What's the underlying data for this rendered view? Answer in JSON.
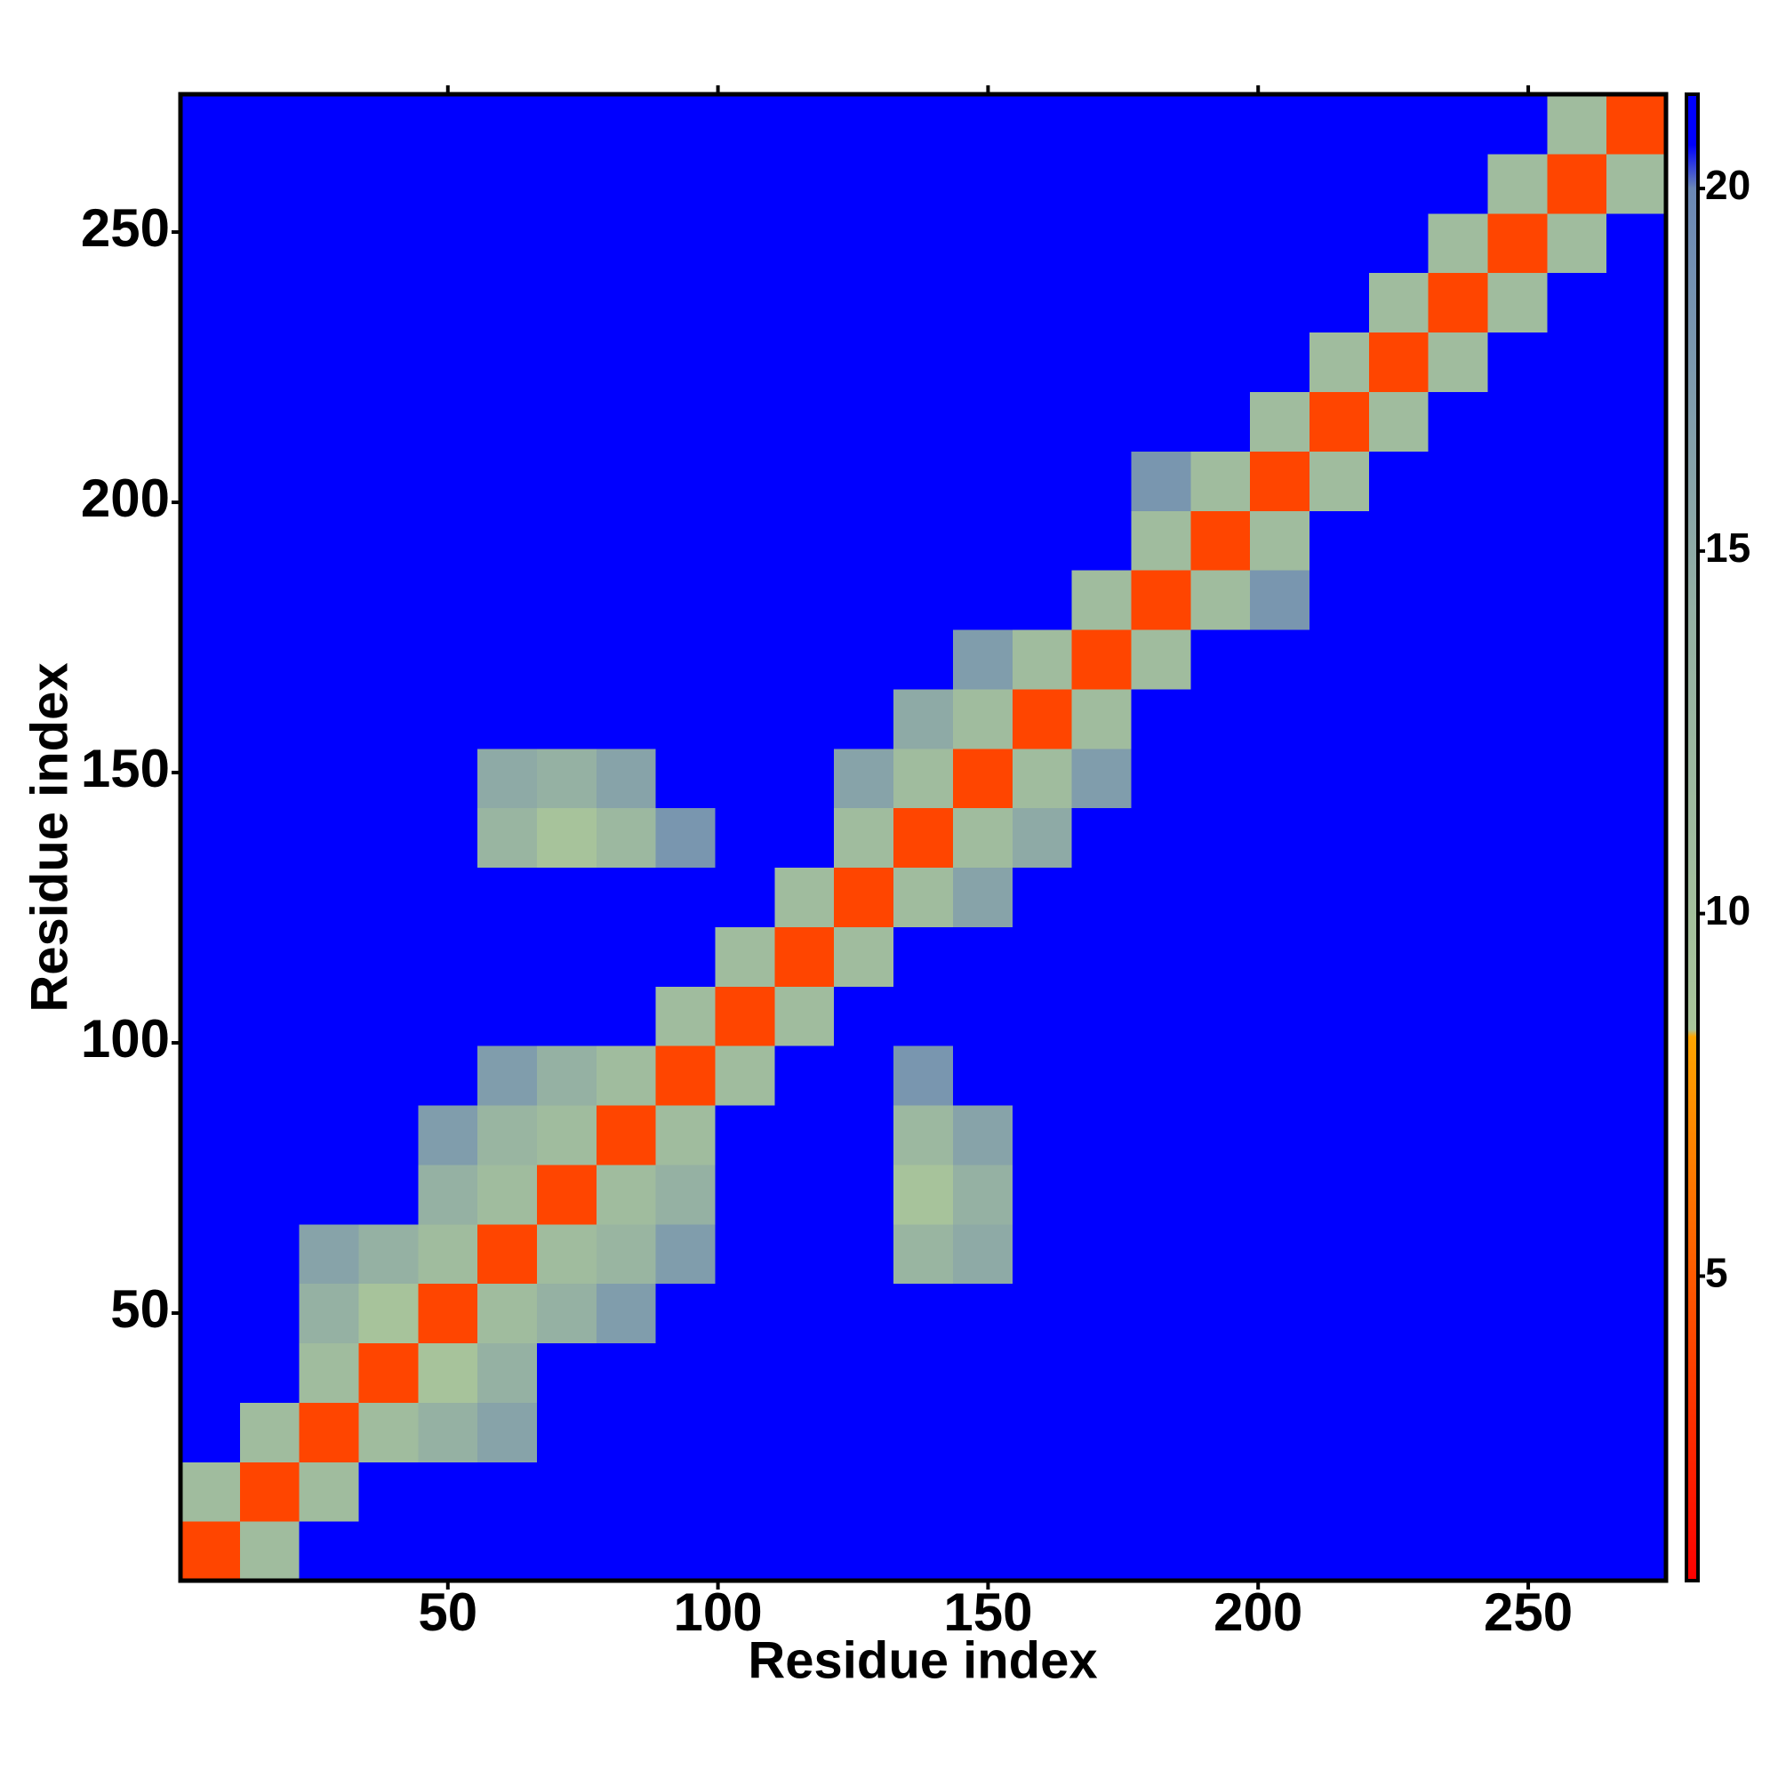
{
  "chart_data": {
    "type": "heatmap",
    "x_label": "Residue index",
    "y_label": "Residue index",
    "xlim": [
      0.5,
      275.5
    ],
    "ylim": [
      0.5,
      275.5
    ],
    "xticks": [
      50,
      100,
      150,
      200,
      250
    ],
    "yticks": [
      50,
      100,
      150,
      200,
      250
    ],
    "xbins": [
      0.5,
      11.5,
      22.5,
      33.5,
      44.5,
      55.5,
      66.5,
      77.5,
      88.5,
      99.5,
      110.5,
      121.5,
      132.5,
      143.5,
      154.5,
      165.5,
      176.5,
      187.5,
      198.5,
      209.5,
      220.5,
      231.5,
      242.5,
      253.5,
      264.5,
      275.5
    ],
    "ybins": [
      0.5,
      11.5,
      22.5,
      33.5,
      44.5,
      55.5,
      66.5,
      77.5,
      88.5,
      99.5,
      110.5,
      121.5,
      132.5,
      143.5,
      154.5,
      165.5,
      176.5,
      187.5,
      198.5,
      209.5,
      220.5,
      231.5,
      242.5,
      253.5,
      264.5,
      275.5
    ],
    "zlim": [
      0.8,
      21.3
    ],
    "zticks": [
      5,
      10,
      15,
      20
    ],
    "colorscale": [
      [
        0.8,
        "#ff0000"
      ],
      [
        5,
        "#ff5a00"
      ],
      [
        8.3,
        "#ffa500"
      ],
      [
        8.4,
        "#a9c59a"
      ],
      [
        14,
        "#95b1a3"
      ],
      [
        20,
        "#6b88b5"
      ],
      [
        20.6,
        "#0000ff"
      ],
      [
        21.3,
        "#0000ff"
      ]
    ],
    "z": [
      [
        4,
        11,
        21,
        21,
        21,
        21,
        21,
        21,
        21,
        21,
        21,
        21,
        21,
        21,
        21,
        21,
        21,
        21,
        21,
        21,
        21,
        21,
        21,
        21,
        21
      ],
      [
        11,
        4,
        11,
        21,
        21,
        21,
        21,
        21,
        21,
        21,
        21,
        21,
        21,
        21,
        21,
        21,
        21,
        21,
        21,
        21,
        21,
        21,
        21,
        21,
        21
      ],
      [
        21,
        11,
        4,
        11,
        14,
        16,
        21,
        21,
        21,
        21,
        21,
        21,
        21,
        21,
        21,
        21,
        21,
        21,
        21,
        21,
        21,
        21,
        21,
        21,
        21
      ],
      [
        21,
        21,
        11,
        4,
        9,
        14,
        21,
        21,
        21,
        21,
        21,
        21,
        21,
        21,
        21,
        21,
        21,
        21,
        21,
        21,
        21,
        21,
        21,
        21,
        21
      ],
      [
        21,
        21,
        14,
        9,
        4,
        11,
        14,
        17,
        21,
        21,
        21,
        21,
        21,
        21,
        21,
        21,
        21,
        21,
        21,
        21,
        21,
        21,
        21,
        21,
        21
      ],
      [
        21,
        21,
        16,
        14,
        11,
        4,
        11,
        13,
        17,
        21,
        21,
        21,
        13,
        15,
        21,
        21,
        21,
        21,
        21,
        21,
        21,
        21,
        21,
        21,
        21
      ],
      [
        21,
        21,
        21,
        21,
        14,
        11,
        4,
        11,
        14,
        21,
        21,
        21,
        9,
        14,
        21,
        21,
        21,
        21,
        21,
        21,
        21,
        21,
        21,
        21,
        21
      ],
      [
        21,
        21,
        21,
        21,
        17,
        13,
        11,
        4,
        11,
        21,
        21,
        21,
        12,
        16,
        21,
        21,
        21,
        21,
        21,
        21,
        21,
        21,
        21,
        21,
        21
      ],
      [
        21,
        21,
        21,
        21,
        21,
        17,
        14,
        11,
        4,
        11,
        21,
        21,
        18,
        21,
        21,
        21,
        21,
        21,
        21,
        21,
        21,
        21,
        21,
        21,
        21
      ],
      [
        21,
        21,
        21,
        21,
        21,
        21,
        21,
        21,
        11,
        4,
        11,
        21,
        21,
        21,
        21,
        21,
        21,
        21,
        21,
        21,
        21,
        21,
        21,
        21,
        21
      ],
      [
        21,
        21,
        21,
        21,
        21,
        21,
        21,
        21,
        21,
        11,
        4,
        11,
        21,
        21,
        21,
        21,
        21,
        21,
        21,
        21,
        21,
        21,
        21,
        21,
        21
      ],
      [
        21,
        21,
        21,
        21,
        21,
        21,
        21,
        21,
        21,
        21,
        11,
        4,
        11,
        16,
        21,
        21,
        21,
        21,
        21,
        21,
        21,
        21,
        21,
        21,
        21
      ],
      [
        21,
        21,
        21,
        21,
        21,
        13,
        9,
        12,
        18,
        21,
        21,
        11,
        4,
        11,
        15,
        21,
        21,
        21,
        21,
        21,
        21,
        21,
        21,
        21,
        21
      ],
      [
        21,
        21,
        21,
        21,
        21,
        15,
        14,
        16,
        21,
        21,
        21,
        16,
        11,
        4,
        11,
        17,
        21,
        21,
        21,
        21,
        21,
        21,
        21,
        21,
        21
      ],
      [
        21,
        21,
        21,
        21,
        21,
        21,
        21,
        21,
        21,
        21,
        21,
        21,
        15,
        11,
        4,
        11,
        21,
        21,
        21,
        21,
        21,
        21,
        21,
        21,
        21
      ],
      [
        21,
        21,
        21,
        21,
        21,
        21,
        21,
        21,
        21,
        21,
        21,
        21,
        21,
        17,
        11,
        4,
        11,
        21,
        21,
        21,
        21,
        21,
        21,
        21,
        21
      ],
      [
        21,
        21,
        21,
        21,
        21,
        21,
        21,
        21,
        21,
        21,
        21,
        21,
        21,
        21,
        21,
        11,
        4,
        11,
        18,
        21,
        21,
        21,
        21,
        21,
        21
      ],
      [
        21,
        21,
        21,
        21,
        21,
        21,
        21,
        21,
        21,
        21,
        21,
        21,
        21,
        21,
        21,
        21,
        11,
        4,
        11,
        21,
        21,
        21,
        21,
        21,
        21
      ],
      [
        21,
        21,
        21,
        21,
        21,
        21,
        21,
        21,
        21,
        21,
        21,
        21,
        21,
        21,
        21,
        21,
        18,
        11,
        4,
        11,
        21,
        21,
        21,
        21,
        21
      ],
      [
        21,
        21,
        21,
        21,
        21,
        21,
        21,
        21,
        21,
        21,
        21,
        21,
        21,
        21,
        21,
        21,
        21,
        21,
        11,
        4,
        11,
        21,
        21,
        21,
        21
      ],
      [
        21,
        21,
        21,
        21,
        21,
        21,
        21,
        21,
        21,
        21,
        21,
        21,
        21,
        21,
        21,
        21,
        21,
        21,
        21,
        11,
        4,
        11,
        21,
        21,
        21
      ],
      [
        21,
        21,
        21,
        21,
        21,
        21,
        21,
        21,
        21,
        21,
        21,
        21,
        21,
        21,
        21,
        21,
        21,
        21,
        21,
        21,
        11,
        4,
        11,
        21,
        21
      ],
      [
        21,
        21,
        21,
        21,
        21,
        21,
        21,
        21,
        21,
        21,
        21,
        21,
        21,
        21,
        21,
        21,
        21,
        21,
        21,
        21,
        21,
        11,
        4,
        11,
        21
      ],
      [
        21,
        21,
        21,
        21,
        21,
        21,
        21,
        21,
        21,
        21,
        21,
        21,
        21,
        21,
        21,
        21,
        21,
        21,
        21,
        21,
        21,
        21,
        11,
        4,
        11
      ],
      [
        21,
        21,
        21,
        21,
        21,
        21,
        21,
        21,
        21,
        21,
        21,
        21,
        21,
        21,
        21,
        21,
        21,
        21,
        21,
        21,
        21,
        21,
        21,
        11,
        4
      ]
    ]
  }
}
